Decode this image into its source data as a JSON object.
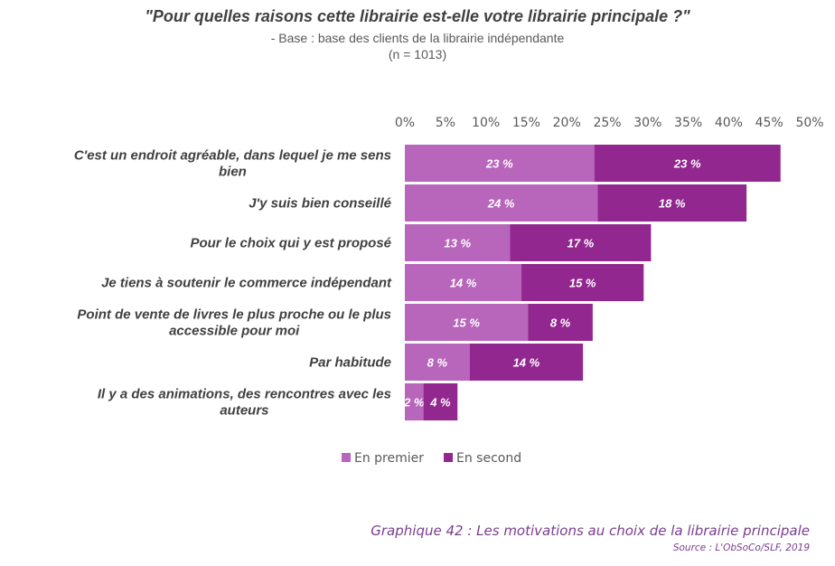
{
  "header": {
    "title": "\"Pour quelles raisons cette librairie est-elle votre librairie principale ?\"",
    "subtitle_line1": "- Base : base des clients de la librairie indépendante",
    "subtitle_line2": "(n = 1013)"
  },
  "footer": {
    "caption": "Graphique 42 : Les motivations au choix de la librairie principale",
    "source": "Source : L'ObSoCo/SLF, 2019"
  },
  "chart_data": {
    "type": "bar",
    "orientation": "horizontal",
    "stacked": true,
    "xlim": [
      0,
      50
    ],
    "ticks": [
      "0%",
      "5%",
      "10%",
      "15%",
      "20%",
      "25%",
      "30%",
      "35%",
      "40%",
      "45%",
      "50%"
    ],
    "tick_values": [
      0,
      5,
      10,
      15,
      20,
      25,
      30,
      35,
      40,
      45,
      50
    ],
    "grid": false,
    "legend_position": "bottom",
    "categories": [
      [
        "C'est un endroit agréable, dans lequel je me sens",
        "bien"
      ],
      [
        "J'y suis bien conseillé"
      ],
      [
        "Pour le choix qui y est proposé"
      ],
      [
        "Je tiens à soutenir le commerce indépendant"
      ],
      [
        "Point de vente de livres le plus proche ou le plus",
        "accessible pour moi"
      ],
      [
        "Par habitude"
      ],
      [
        "Il y a des animations, des rencontres avec les",
        "auteurs"
      ]
    ],
    "series": [
      {
        "name": "En premier",
        "color": "#b865bc",
        "values": [
          23.4,
          23.8,
          13.0,
          14.4,
          15.2,
          8.0,
          2.3
        ],
        "labels": [
          "23 %",
          "24 %",
          "13 %",
          "14 %",
          "15 %",
          "8 %",
          "2 %"
        ]
      },
      {
        "name": "En second",
        "color": "#92278f",
        "values": [
          23.0,
          18.4,
          17.4,
          15.1,
          8.0,
          14.0,
          4.2
        ],
        "labels": [
          "23 %",
          "18 %",
          "17 %",
          "15 %",
          "8 %",
          "14 %",
          "4 %"
        ]
      }
    ]
  }
}
